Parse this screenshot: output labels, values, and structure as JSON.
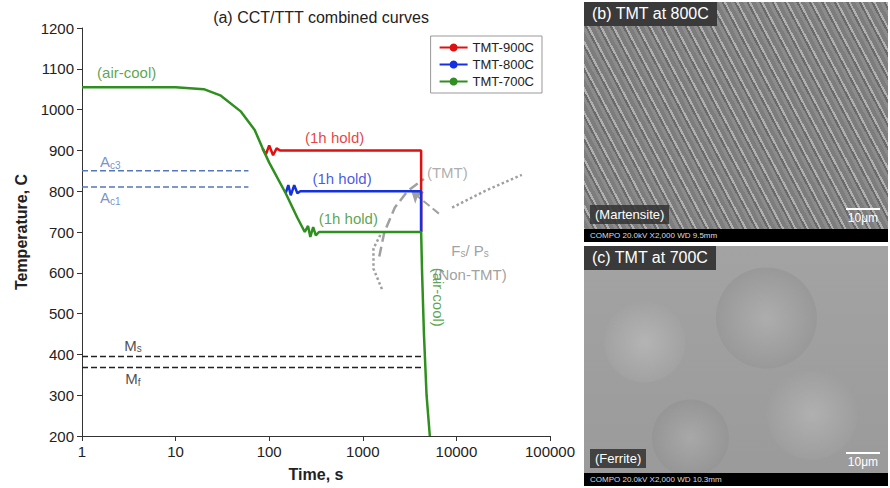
{
  "chart_data": {
    "type": "line",
    "title": "(a) CCT/TTT combined curves",
    "x_label": "Time, s",
    "y_label": "Temperature, C",
    "log": "x",
    "xlim": [
      1,
      100000
    ],
    "xticks": [
      1,
      10,
      100,
      1000,
      10000,
      100000
    ],
    "ylim": [
      200,
      1200
    ],
    "yticks": [
      200,
      300,
      400,
      500,
      600,
      700,
      800,
      900,
      1000,
      1100,
      1200
    ],
    "grid": false,
    "legend": "upper right",
    "series": [
      {
        "name": "TMT-900C",
        "color": "#e01010",
        "line_style": "solid",
        "x": [
          85,
          92,
          100,
          110,
          120,
          130,
          4200,
          4200
        ],
        "values": [
          905,
          890,
          912,
          888,
          905,
          900,
          900,
          700
        ]
      },
      {
        "name": "TMT-800C",
        "color": "#1530e0",
        "line_style": "solid",
        "x": [
          150,
          160,
          170,
          185,
          200,
          215,
          4200,
          4200
        ],
        "values": [
          795,
          815,
          790,
          815,
          795,
          800,
          800,
          700
        ]
      },
      {
        "name": "TMT-700C",
        "color": "#2f8f1f",
        "line_style": "solid",
        "x": [
          1,
          10,
          20,
          30,
          50,
          70,
          85,
          100,
          150,
          200,
          240,
          260,
          275,
          295,
          315,
          340,
          4200,
          4300,
          4500,
          4800,
          5200
        ],
        "values": [
          1055,
          1055,
          1050,
          1035,
          995,
          950,
          905,
          870,
          795,
          735,
          700,
          715,
          688,
          712,
          692,
          700,
          700,
          600,
          450,
          300,
          200
        ]
      }
    ],
    "reference_lines": [
      {
        "label": "Ac3",
        "y": 850,
        "x": [
          1,
          60
        ],
        "color": "#5577bb",
        "line_style": "dashed"
      },
      {
        "label": "Ac1",
        "y": 810,
        "x": [
          1,
          60
        ],
        "color": "#5577bb",
        "line_style": "dashed"
      },
      {
        "label": "Ms",
        "y": 395,
        "x": [
          1,
          4300
        ],
        "color": "#222222",
        "line_style": "dashed"
      },
      {
        "label": "Mf",
        "y": 368,
        "x": [
          1,
          4300
        ],
        "color": "#222222",
        "line_style": "dashed"
      }
    ],
    "curves": [
      {
        "label": "(TMT)",
        "color": "#a0a0a0",
        "line_style": "dashed",
        "x": [
          1500,
          1700,
          2200,
          3000,
          4500
        ],
        "values": [
          640,
          700,
          760,
          800,
          830
        ]
      },
      {
        "label": "(Non-TMT)",
        "color": "#a0a0a0",
        "line_style": "dotted",
        "x": [
          1600,
          1300,
          1300,
          1600
        ],
        "values": [
          560,
          610,
          660,
          700
        ]
      },
      {
        "label": "(Non-TMT)",
        "color": "#a0a0a0",
        "line_style": "dotted",
        "x": [
          9000,
          20000,
          50000
        ],
        "values": [
          760,
          800,
          840
        ]
      }
    ],
    "arrow": {
      "color": "#a0a0a0",
      "from": [
        6500,
        745
      ],
      "to": [
        3300,
        800
      ]
    },
    "annotations": [
      {
        "text": "(air-cool)",
        "x": 3,
        "y": 1090,
        "color": "#2f8f1f"
      },
      {
        "text": "(1h hold)",
        "x": 500,
        "y": 932,
        "color": "#e01010"
      },
      {
        "text": "(1h hold)",
        "x": 600,
        "y": 832,
        "color": "#1530e0"
      },
      {
        "text": "(1h hold)",
        "x": 700,
        "y": 732,
        "color": "#2f8f1f"
      },
      {
        "text": "(air-cool)",
        "x": 6500,
        "y": 540,
        "color": "#2f8f1f",
        "orientation": "vertical"
      },
      {
        "text": "Ac3",
        "x": 2,
        "y": 872,
        "color": "#5577bb",
        "subscript": true
      },
      {
        "text": "Ac1",
        "x": 2,
        "y": 784,
        "color": "#5577bb",
        "subscript": true
      },
      {
        "text": "Ms",
        "x": 3.5,
        "y": 422,
        "color": "#222222",
        "subscript": true
      },
      {
        "text": "Mf",
        "x": 3.5,
        "y": 340,
        "color": "#222222",
        "subscript": true
      },
      {
        "text": "(TMT)",
        "x": 8000,
        "y": 845,
        "color": "#999999"
      },
      {
        "text": "Fs/ Ps",
        "x": 14000,
        "y": 655,
        "color": "#888888",
        "subscript": true
      },
      {
        "text": "(Non-TMT)",
        "x": 14000,
        "y": 595,
        "color": "#888888"
      }
    ]
  },
  "panels": [
    {
      "title": "(b) TMT at 800C",
      "phase": "(Martensite)",
      "scale": "10μm",
      "info": "COMPO 20.0kV X2,000 WD 9.5mm"
    },
    {
      "title": "(c) TMT at 700C",
      "phase": "(Ferrite)",
      "scale": "10μm",
      "info": "COMPO 20.0kV X2,000 WD 10.3mm"
    }
  ]
}
